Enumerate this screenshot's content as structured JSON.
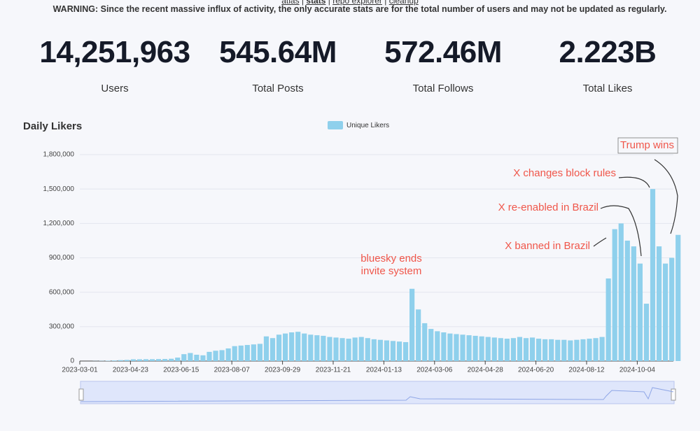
{
  "header": {
    "nav": [
      "atlas",
      "stats",
      "repo explorer",
      "cleanup"
    ],
    "warning": "WARNING: Since the recent massive influx of activity, the only accurate stats are for the total number of users and may not be updated as regularly."
  },
  "stats": [
    {
      "value": "14,251,963",
      "label": "Users"
    },
    {
      "value": "545.64M",
      "label": "Total Posts"
    },
    {
      "value": "572.46M",
      "label": "Total Follows"
    },
    {
      "value": "2.223B",
      "label": "Total Likes"
    }
  ],
  "chart_data": {
    "type": "bar",
    "title": "Daily Likers",
    "categories": [
      "2023-03-01",
      null,
      null,
      null,
      null,
      null,
      null,
      null,
      "2023-04-23",
      null,
      null,
      null,
      null,
      null,
      null,
      null,
      "2023-06-15",
      null,
      null,
      null,
      null,
      null,
      null,
      null,
      "2023-08-07",
      null,
      null,
      null,
      null,
      null,
      null,
      null,
      "2023-09-29",
      null,
      null,
      null,
      null,
      null,
      null,
      null,
      "2023-11-21",
      null,
      null,
      null,
      null,
      null,
      null,
      null,
      "2024-01-13",
      null,
      null,
      null,
      null,
      null,
      null,
      null,
      "2024-03-06",
      null,
      null,
      null,
      null,
      null,
      null,
      null,
      "2024-04-28",
      null,
      null,
      null,
      null,
      null,
      null,
      null,
      "2024-06-20",
      null,
      null,
      null,
      null,
      null,
      null,
      null,
      "2024-08-12",
      null,
      null,
      null,
      null,
      null,
      null,
      null,
      "2024-10-04",
      null,
      null,
      null,
      null,
      null,
      null
    ],
    "series": [
      {
        "name": "Unique Likers",
        "color": "#8fd0ec",
        "values": [
          0,
          0,
          1000,
          2000,
          3000,
          5000,
          8000,
          10000,
          15000,
          15000,
          16000,
          16000,
          17000,
          18000,
          20000,
          30000,
          60000,
          70000,
          55000,
          50000,
          80000,
          90000,
          95000,
          110000,
          130000,
          135000,
          140000,
          145000,
          150000,
          215000,
          200000,
          230000,
          240000,
          250000,
          255000,
          240000,
          230000,
          225000,
          220000,
          210000,
          205000,
          200000,
          195000,
          205000,
          210000,
          200000,
          190000,
          185000,
          180000,
          175000,
          170000,
          165000,
          630000,
          450000,
          330000,
          280000,
          260000,
          250000,
          240000,
          235000,
          230000,
          225000,
          220000,
          215000,
          210000,
          205000,
          200000,
          195000,
          200000,
          210000,
          200000,
          205000,
          195000,
          190000,
          190000,
          185000,
          185000,
          180000,
          185000,
          190000,
          195000,
          200000,
          210000,
          720000,
          1150000,
          1200000,
          1050000,
          1000000,
          850000,
          500000,
          1500000,
          1000000,
          850000,
          900000,
          1100000
        ]
      }
    ],
    "ylim": [
      0,
      1800000
    ],
    "yticks": [
      0,
      {
        "value": 300000,
        "label": "300,000"
      },
      {
        "value": 600000,
        "label": "600,000"
      },
      {
        "value": 900000,
        "label": "900,000"
      },
      {
        "value": 1200000,
        "label": "1,200,000"
      },
      {
        "value": 1500000,
        "label": "1,500,000"
      },
      {
        "value": 1800000,
        "label": "1,800,000"
      }
    ],
    "grid": true,
    "annotations": [
      {
        "lines": [
          "bluesky ends",
          "invite system"
        ]
      },
      {
        "lines": [
          "X banned in Brazil"
        ]
      },
      {
        "lines": [
          "X re-enabled in Brazil"
        ]
      },
      {
        "lines": [
          "X changes block rules"
        ]
      },
      {
        "lines": [
          "Trump wins"
        ]
      }
    ]
  }
}
